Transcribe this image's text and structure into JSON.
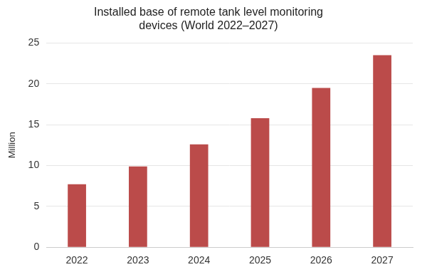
{
  "chart_data": {
    "type": "bar",
    "title": [
      "Installed base of remote tank level monitoring",
      "devices (World 2022–2027)"
    ],
    "y_label": "Million",
    "categories": [
      "2022",
      "2023",
      "2024",
      "2025",
      "2026",
      "2027"
    ],
    "values": [
      7.7,
      9.9,
      12.6,
      15.8,
      19.5,
      23.5
    ],
    "color": "#bb4b4a",
    "ylim": [
      0,
      25
    ],
    "yticks": [
      0,
      5,
      10,
      15,
      20,
      25
    ],
    "grid": true
  }
}
